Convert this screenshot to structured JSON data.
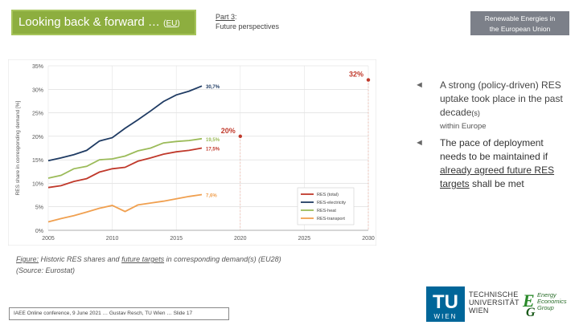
{
  "header": {
    "title_main": "Looking back & forward …",
    "title_open": "(",
    "title_eu": "EU",
    "title_close": ")",
    "part_label": "Part 3",
    "part_colon": ":",
    "part_subtitle": "Future perspectives",
    "topic_line1": "Renewable Energies in",
    "topic_line2": "the European Union"
  },
  "chart_data": {
    "type": "line",
    "ylabel": "RES share in corresponding demand [%]",
    "xlim": [
      2005,
      2030
    ],
    "ylim": [
      0,
      35
    ],
    "x_ticks": [
      "2005",
      "2010",
      "2015",
      "2020",
      "2025",
      "2030"
    ],
    "y_ticks": [
      "0%",
      "5%",
      "10%",
      "15%",
      "20%",
      "25%",
      "30%",
      "35%"
    ],
    "grid": true,
    "legend_position": "bottom-right",
    "series": [
      {
        "name": "RES (total)",
        "color": "#c0392b",
        "x": [
          2005,
          2006,
          2007,
          2008,
          2009,
          2010,
          2011,
          2012,
          2013,
          2014,
          2015,
          2016,
          2017
        ],
        "y": [
          9.1,
          9.5,
          10.4,
          11.0,
          12.4,
          13.1,
          13.4,
          14.7,
          15.4,
          16.2,
          16.7,
          17.0,
          17.5
        ],
        "end_label": "17,5%"
      },
      {
        "name": "RES-electricity",
        "color": "#1f3b63",
        "x": [
          2005,
          2006,
          2007,
          2008,
          2009,
          2010,
          2011,
          2012,
          2013,
          2014,
          2015,
          2016,
          2017
        ],
        "y": [
          14.8,
          15.4,
          16.1,
          17.0,
          19.0,
          19.7,
          21.7,
          23.5,
          25.4,
          27.4,
          28.8,
          29.6,
          30.7
        ],
        "end_label": "30,7%"
      },
      {
        "name": "RES-heat",
        "color": "#9bbb59",
        "x": [
          2005,
          2006,
          2007,
          2008,
          2009,
          2010,
          2011,
          2012,
          2013,
          2014,
          2015,
          2016,
          2017
        ],
        "y": [
          11.1,
          11.7,
          13.1,
          13.6,
          15.0,
          15.2,
          15.8,
          16.9,
          17.5,
          18.6,
          18.9,
          19.1,
          19.5
        ],
        "end_label": "19,5%"
      },
      {
        "name": "RES-transport",
        "color": "#f0a050",
        "x": [
          2005,
          2006,
          2007,
          2008,
          2009,
          2010,
          2011,
          2012,
          2013,
          2014,
          2015,
          2016,
          2017
        ],
        "y": [
          1.8,
          2.5,
          3.1,
          3.9,
          4.7,
          5.3,
          4.0,
          5.4,
          5.8,
          6.2,
          6.7,
          7.2,
          7.6
        ],
        "end_label": "7,6%"
      }
    ],
    "targets": [
      {
        "x": 2020,
        "y": 20,
        "label": "20%",
        "color": "#c0392b"
      },
      {
        "x": 2030,
        "y": 32,
        "label": "32%",
        "color": "#c0392b"
      }
    ]
  },
  "caption": {
    "fig_label": "Figure:",
    "text1": " Historic RES shares and ",
    "future_targets": "future targets",
    "text2": " in corresponding demand(s) ",
    "eu28": "(EU28)",
    "source": "(Source: Eurostat)"
  },
  "bullets": {
    "b1_main": "A strong (policy-driven) RES uptake took place in the past decade",
    "b1_suffix": "(s)",
    "b1_sub": "within Europe",
    "b2_pre": "The pace of deployment needs to be maintained if ",
    "b2_link": "already agreed future RES targets",
    "b2_post": " shall be met"
  },
  "footer": {
    "text": "IAEE Online conference, 9 June 2021 … Gustav Resch, TU Wien … Slide 17"
  },
  "logos": {
    "tu_line1": "TECHNISCHE",
    "tu_line2": "UNIVERSITÄT",
    "tu_line3": "WIEN",
    "tu_mark": "TU",
    "tu_sub": "WIEN",
    "eeg_line1": "Energy",
    "eeg_line2": "Economics",
    "eeg_line3": "Group"
  }
}
